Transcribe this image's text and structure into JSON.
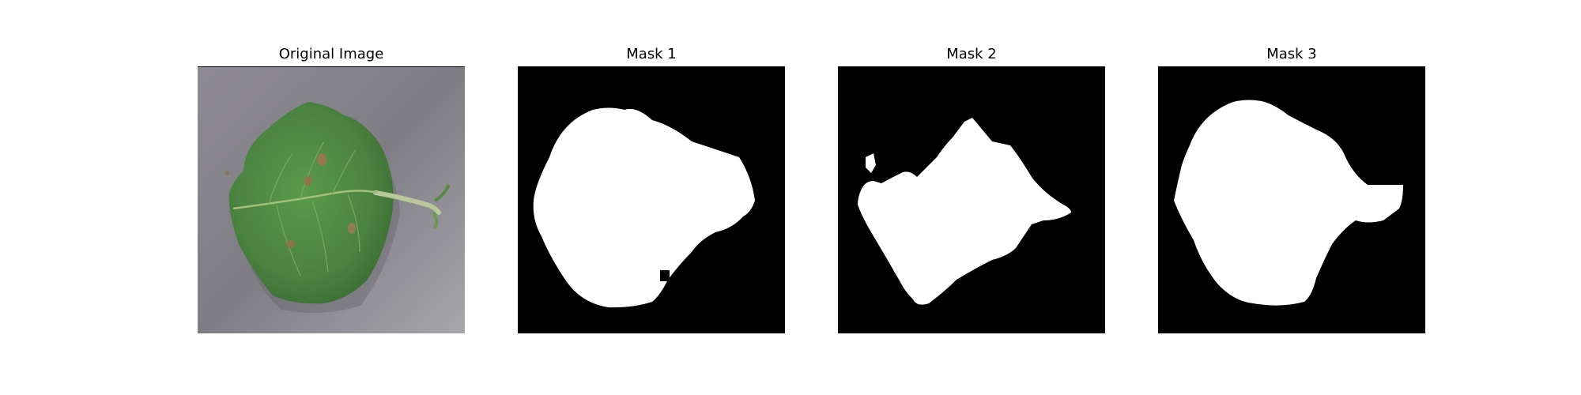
{
  "panels": [
    {
      "title": "Original Image"
    },
    {
      "title": "Mask 1"
    },
    {
      "title": "Mask 2"
    },
    {
      "title": "Mask 3"
    }
  ],
  "colors": {
    "mask_background": "#000000",
    "mask_foreground": "#ffffff",
    "leaf_green": "#4f8a44",
    "surface_gray": "#8f8d92"
  }
}
